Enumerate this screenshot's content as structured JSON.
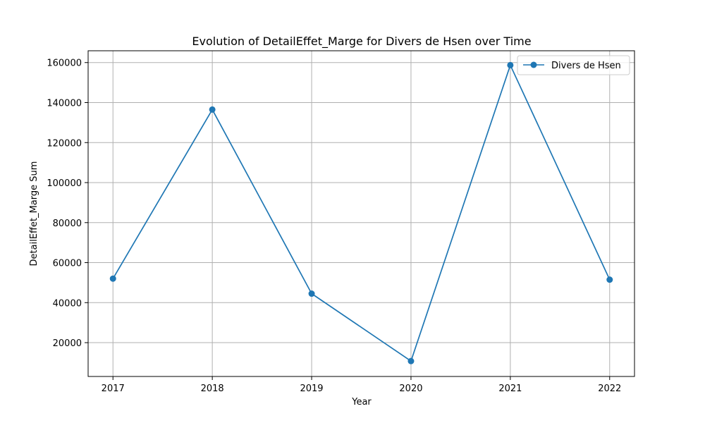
{
  "chart_data": {
    "type": "line",
    "title": "Evolution of DetailEffet_Marge for Divers de Hsen over Time",
    "xlabel": "Year",
    "ylabel": "DetailEffet_Marge Sum",
    "x": [
      "2017",
      "2018",
      "2019",
      "2020",
      "2021",
      "2022"
    ],
    "series": [
      {
        "name": "Divers de Hsen",
        "values": [
          52000,
          136500,
          44500,
          10800,
          158700,
          51500
        ],
        "color": "#1f77b4",
        "marker": "circle"
      }
    ],
    "xlim": [
      2016.75,
      2022.25
    ],
    "ylim": [
      3100,
      165900
    ],
    "yticks": [
      20000,
      40000,
      60000,
      80000,
      100000,
      120000,
      140000,
      160000
    ],
    "ytick_labels": [
      "20000",
      "40000",
      "60000",
      "80000",
      "100000",
      "120000",
      "140000",
      "160000"
    ],
    "grid": true,
    "legend_position": "upper-right"
  }
}
